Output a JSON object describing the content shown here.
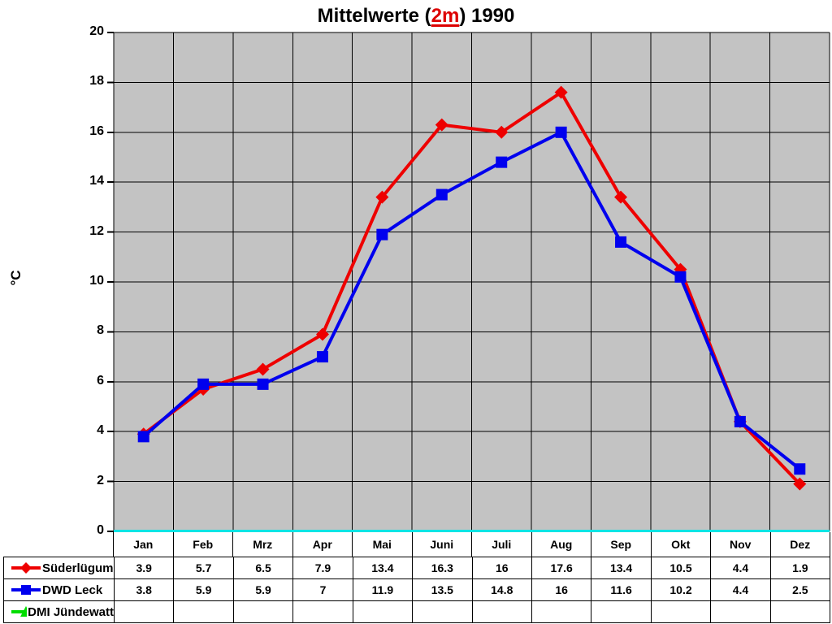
{
  "title": {
    "prefix": "Mittelwerte (",
    "highlight": "2m",
    "suffix": ") 1990"
  },
  "y_axis_label": "°C",
  "chart_data": {
    "type": "line",
    "title": "Mittelwerte (2m) 1990",
    "ylabel": "°C",
    "xlabel": "",
    "categories": [
      "Jan",
      "Feb",
      "Mrz",
      "Apr",
      "Mai",
      "Juni",
      "Juli",
      "Aug",
      "Sep",
      "Okt",
      "Nov",
      "Dez"
    ],
    "series": [
      {
        "name": "Süderlügum",
        "color": "#ee0000",
        "marker": "diamond",
        "values": [
          3.9,
          5.7,
          6.5,
          7.9,
          13.4,
          16.3,
          16,
          17.6,
          13.4,
          10.5,
          4.4,
          1.9
        ]
      },
      {
        "name": "DWD Leck",
        "color": "#0000ee",
        "marker": "square",
        "values": [
          3.8,
          5.9,
          5.9,
          7,
          11.9,
          13.5,
          14.8,
          16,
          11.6,
          10.2,
          4.4,
          2.5
        ]
      },
      {
        "name": "DMI Jündewatt",
        "color": "#00dd00",
        "marker": "triangle",
        "values": []
      }
    ],
    "ylim": [
      0,
      20
    ],
    "y_tick_step": 2,
    "grid": true,
    "legend_position": "bottom-left-table",
    "plot_bg": "#c3c3c3",
    "gridline_color": "#000000",
    "baseline_color": "#00e5e5",
    "title_highlight_color": "#dd0000"
  }
}
